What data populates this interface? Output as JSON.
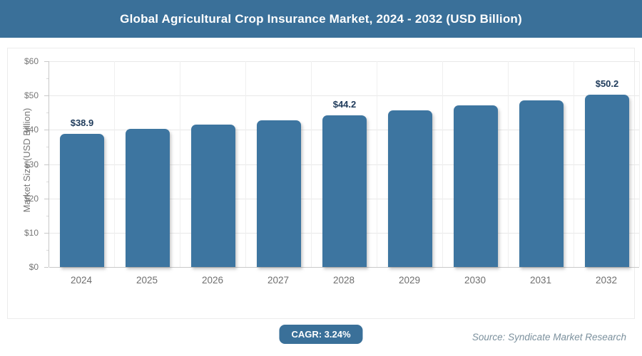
{
  "header": {
    "title": "Global Agricultural Crop Insurance Market, 2024 - 2032 (USD Billion)"
  },
  "chart_data": {
    "type": "bar",
    "title": "Global Agricultural Crop Insurance Market, 2024 - 2032 (USD Billion)",
    "categories": [
      "2024",
      "2025",
      "2026",
      "2027",
      "2028",
      "2029",
      "2030",
      "2031",
      "2032"
    ],
    "values": [
      38.9,
      40.2,
      41.5,
      42.8,
      44.2,
      45.6,
      47.1,
      48.6,
      50.2
    ],
    "data_labels": [
      "$38.9",
      "",
      "",
      "",
      "$44.2",
      "",
      "",
      "",
      "$50.2"
    ],
    "xlabel": "",
    "ylabel": "Market Size (USD Billion)",
    "ylim": [
      0,
      60
    ],
    "ytick_step": 10,
    "ytick_minor_step": 5,
    "ytick_labels": [
      "$0",
      "$10",
      "$20",
      "$30",
      "$40",
      "$50",
      "$60"
    ],
    "grid": true,
    "legend": false,
    "bar_color": "#3d75a0",
    "data_label_color": "#1e3a5a"
  },
  "footer": {
    "cagr_label": "CAGR: 3.24%",
    "source": "Source: Syndicate Market Research"
  },
  "colors": {
    "accent": "#3a7099",
    "bar": "#3d75a0",
    "grid": "#e8e8e8",
    "axis": "#c8c8c8",
    "tick_text": "#767676",
    "source_text": "#7b909d"
  }
}
